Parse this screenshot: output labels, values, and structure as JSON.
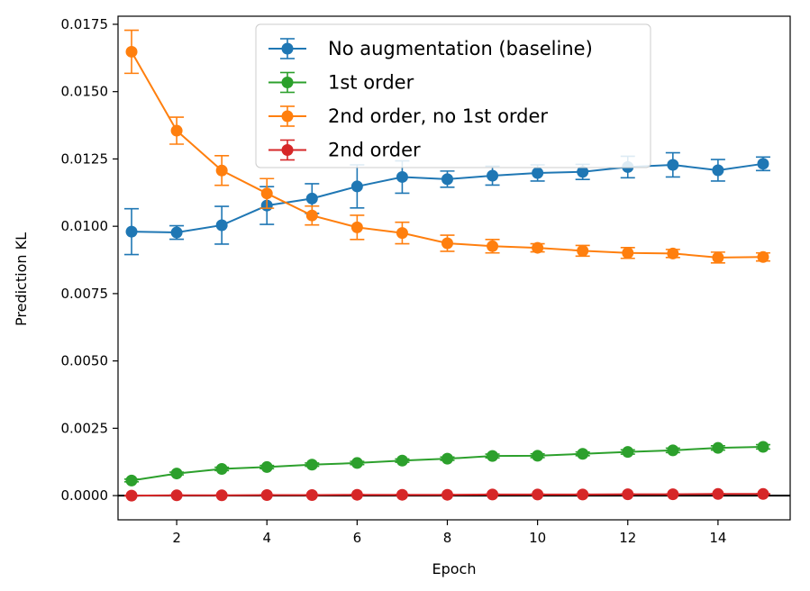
{
  "chart_data": {
    "type": "line",
    "title": "",
    "xlabel": "Epoch",
    "ylabel": "Prediction KL",
    "xlim": [
      0.7,
      15.6
    ],
    "ylim": [
      -0.0009,
      0.0178
    ],
    "xticks": [
      2,
      4,
      6,
      8,
      10,
      12,
      14
    ],
    "xtick_labels": [
      "2",
      "4",
      "6",
      "8",
      "10",
      "12",
      "14"
    ],
    "yticks": [
      0,
      0.0025,
      0.005,
      0.0075,
      0.01,
      0.0125,
      0.015,
      0.0175
    ],
    "ytick_labels": [
      "0.0000",
      "0.0025",
      "0.0050",
      "0.0075",
      "0.0100",
      "0.0125",
      "0.0150",
      "0.0175"
    ],
    "grid": false,
    "reference_line_y": 0,
    "legend_position": "upper-center",
    "x": [
      1,
      2,
      3,
      4,
      5,
      6,
      7,
      8,
      9,
      10,
      11,
      12,
      13,
      14,
      15
    ],
    "series": [
      {
        "name": "No augmentation (baseline)",
        "color": "#1f77b4",
        "values": [
          0.0098,
          0.00977,
          0.01004,
          0.01077,
          0.01103,
          0.01148,
          0.01183,
          0.01175,
          0.01188,
          0.01198,
          0.01202,
          0.0122,
          0.01228,
          0.01208,
          0.01232
        ],
        "errors": [
          0.00085,
          0.00025,
          0.0007,
          0.0007,
          0.00055,
          0.0008,
          0.0006,
          0.0003,
          0.00035,
          0.0003,
          0.00028,
          0.0004,
          0.00045,
          0.0004,
          0.00025
        ]
      },
      {
        "name": "1st order",
        "color": "#2ca02c",
        "values": [
          0.00056,
          0.00082,
          0.00099,
          0.00106,
          0.00115,
          0.00121,
          0.0013,
          0.00137,
          0.00147,
          0.00148,
          0.00155,
          0.00162,
          0.00168,
          0.00177,
          0.00181
        ],
        "errors": [
          5e-05,
          5e-05,
          6e-05,
          6e-05,
          6e-05,
          6e-05,
          6e-05,
          6e-05,
          7e-05,
          7e-05,
          7e-05,
          8e-05,
          8e-05,
          8e-05,
          8e-05
        ]
      },
      {
        "name": "2nd order, no 1st order",
        "color": "#ff7f0e",
        "values": [
          0.01648,
          0.01355,
          0.01207,
          0.01122,
          0.0104,
          0.00996,
          0.00975,
          0.00937,
          0.00926,
          0.0092,
          0.00909,
          0.00901,
          0.00899,
          0.00884,
          0.00886
        ],
        "errors": [
          0.0008,
          0.0005,
          0.00055,
          0.00055,
          0.00035,
          0.00045,
          0.0004,
          0.0003,
          0.00025,
          0.00015,
          0.0002,
          0.0002,
          0.00015,
          0.0002,
          0.00015
        ]
      },
      {
        "name": "2nd order",
        "color": "#d62728",
        "values": [
          0.0,
          1e-05,
          1e-05,
          2e-05,
          2e-05,
          3e-05,
          3e-05,
          3e-05,
          4e-05,
          4e-05,
          4e-05,
          5e-05,
          5e-05,
          6e-05,
          6e-05
        ],
        "errors": [
          1e-05,
          1e-05,
          1e-05,
          1e-05,
          1e-05,
          1e-05,
          1e-05,
          1e-05,
          1e-05,
          1e-05,
          1e-05,
          1e-05,
          1e-05,
          1e-05,
          1e-05
        ]
      }
    ]
  }
}
